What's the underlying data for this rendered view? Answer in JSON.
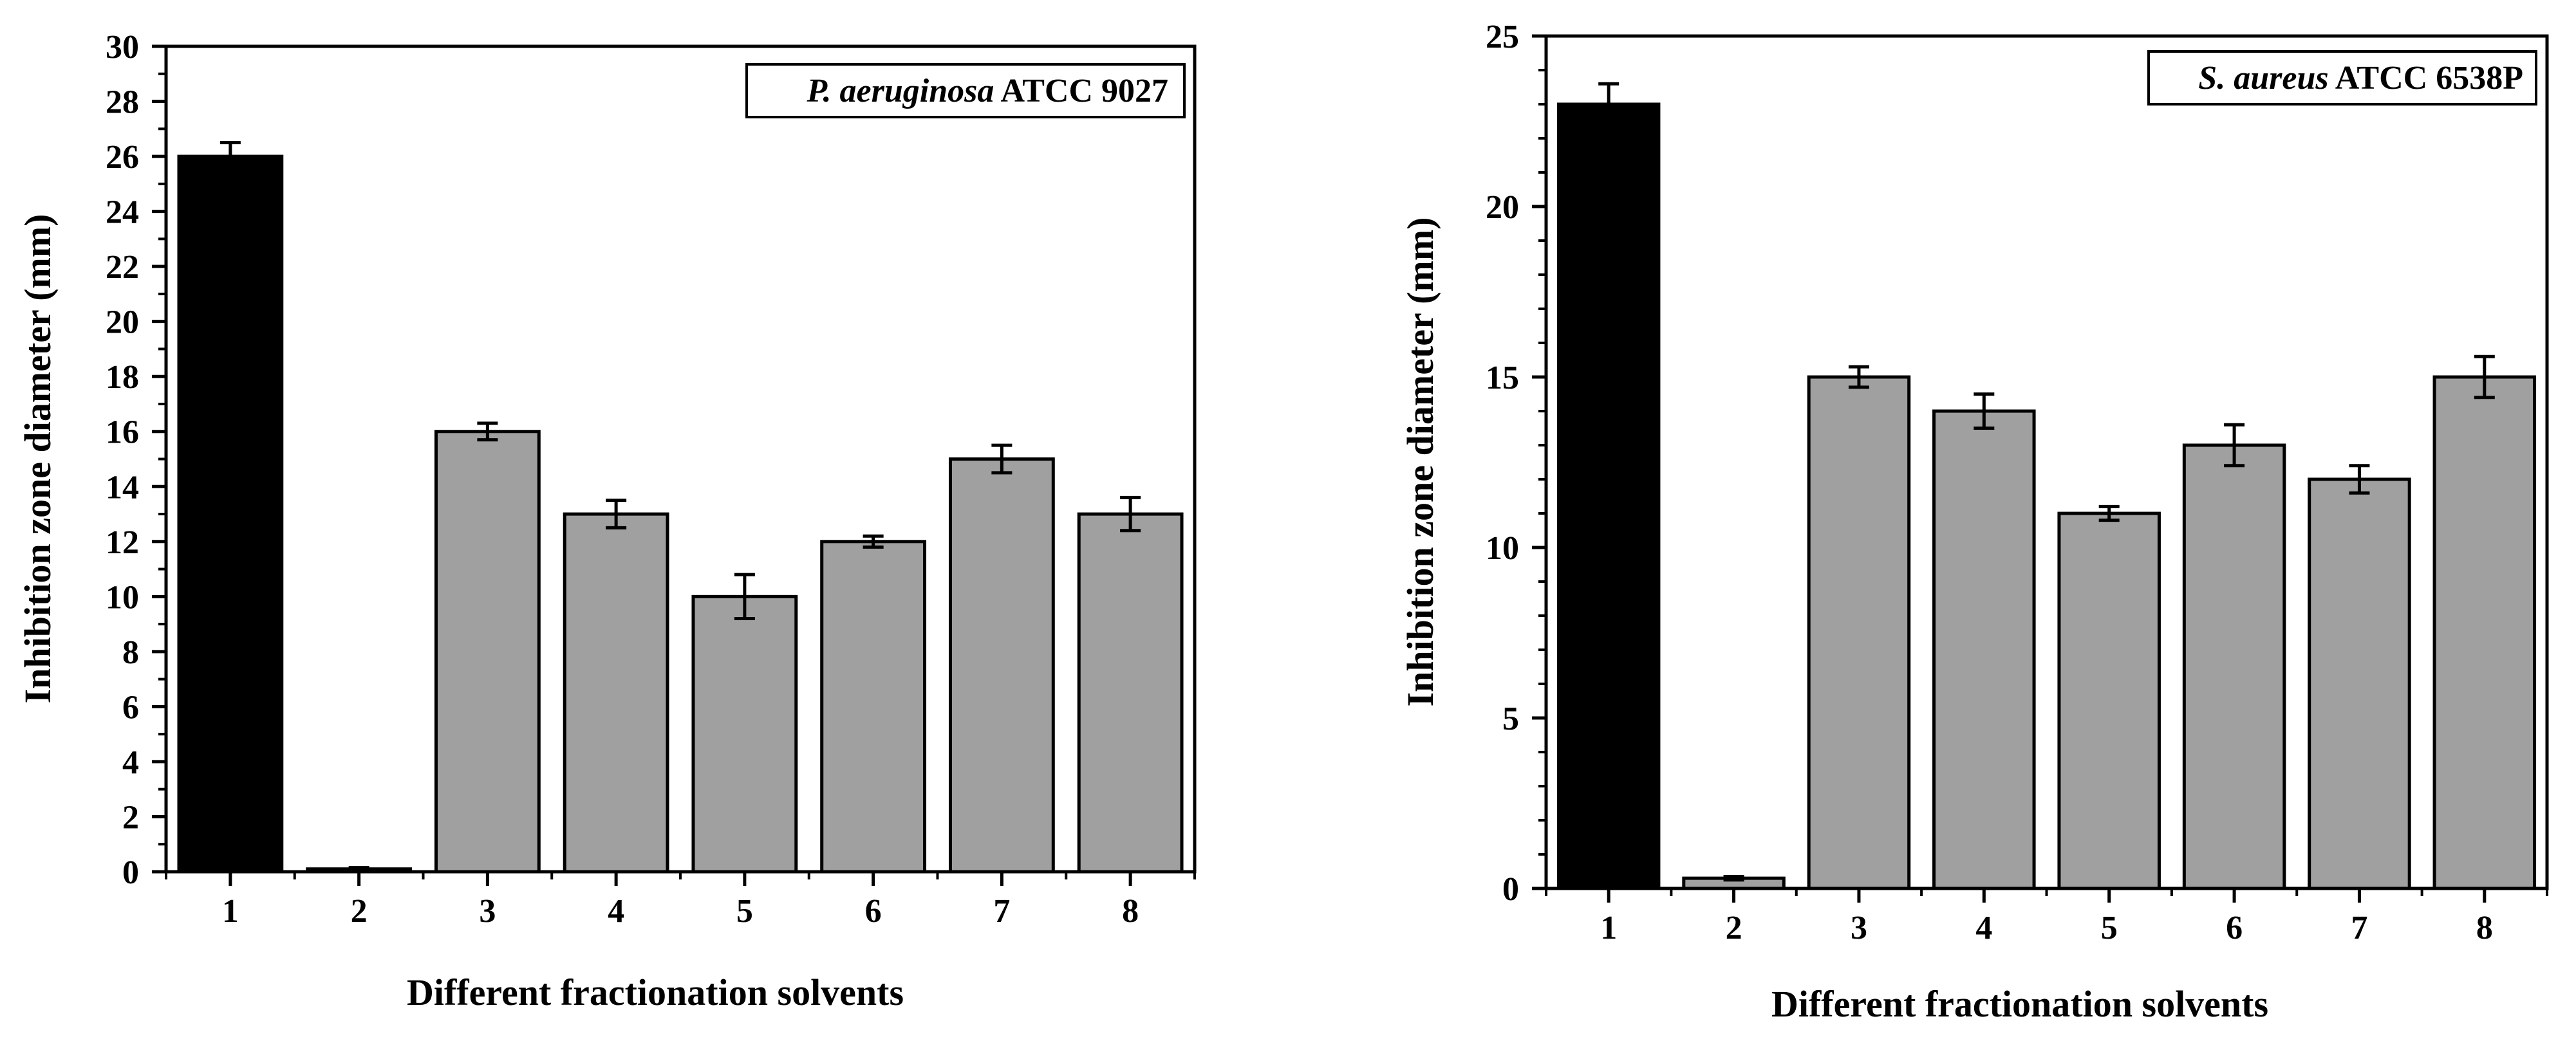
{
  "chart_data": [
    {
      "type": "bar",
      "categories": [
        "1",
        "2",
        "3",
        "4",
        "5",
        "6",
        "7",
        "8"
      ],
      "values": [
        26,
        0.1,
        16,
        13,
        10,
        12,
        15,
        13
      ],
      "errors": [
        0.5,
        0.05,
        0.3,
        0.5,
        0.8,
        0.2,
        0.5,
        0.6
      ],
      "bar_colors": [
        "#000000",
        "#a0a0a0",
        "#a0a0a0",
        "#a0a0a0",
        "#a0a0a0",
        "#a0a0a0",
        "#a0a0a0",
        "#a0a0a0"
      ],
      "title_italic": "P. aeruginosa",
      "title_rest": " ATCC 9027",
      "xlabel": "Different fractionation solvents",
      "ylabel": "Inhibition zone diameter (mm)",
      "ylim": [
        0,
        30
      ],
      "yticks": [
        "0",
        "2",
        "4",
        "6",
        "8",
        "10",
        "12",
        "14",
        "16",
        "18",
        "20",
        "22",
        "24",
        "26",
        "28",
        "30"
      ],
      "legend_position": "top-right"
    },
    {
      "type": "bar",
      "categories": [
        "1",
        "2",
        "3",
        "4",
        "5",
        "6",
        "7",
        "8"
      ],
      "values": [
        23,
        0.3,
        15,
        14,
        11,
        13,
        12,
        15
      ],
      "errors": [
        0.6,
        0.05,
        0.3,
        0.5,
        0.2,
        0.6,
        0.4,
        0.6
      ],
      "bar_colors": [
        "#000000",
        "#a0a0a0",
        "#a0a0a0",
        "#a0a0a0",
        "#a0a0a0",
        "#a0a0a0",
        "#a0a0a0",
        "#a0a0a0"
      ],
      "title_italic": "S. aureus",
      "title_rest": " ATCC 6538P",
      "xlabel": "Different fractionation solvents",
      "ylabel": "Inhibition zone diameter (mm)",
      "ylim": [
        0,
        25
      ],
      "yticks": [
        "0",
        "5",
        "10",
        "15",
        "20",
        "25"
      ],
      "legend_position": "top-right"
    }
  ]
}
